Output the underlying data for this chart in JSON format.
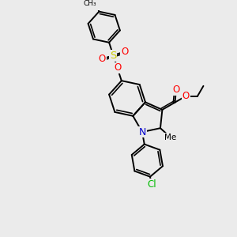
{
  "bg_color": "#ebebeb",
  "bond_color": "#000000",
  "bond_lw": 1.4,
  "atom_colors": {
    "O": "#ff0000",
    "N": "#0000cc",
    "S": "#cccc00",
    "Cl": "#00bb00",
    "C": "#000000"
  },
  "font_size": 7.5
}
